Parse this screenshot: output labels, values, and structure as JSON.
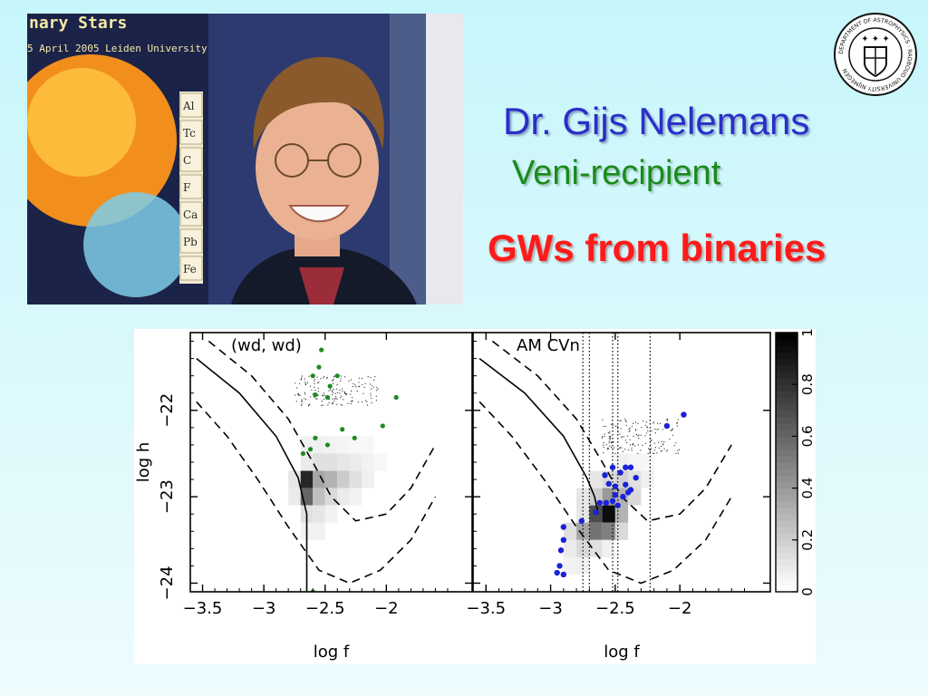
{
  "slide": {
    "name": "Dr. Gijs Nelemans",
    "role": "Veni-recipient",
    "topic": "GWs from binaries"
  },
  "photo": {
    "poster_line1": "nary Stars",
    "poster_line2": "5 April 2005 Leiden University",
    "elements": [
      "Al",
      "Tc",
      "C",
      "F",
      "Ca",
      "Pb",
      "Fe"
    ]
  },
  "seal": {
    "text": "DEPARTMENT OF ASTROPHYSICS · RADBOUD UNIVERSITY NIJMEGEN"
  },
  "colors": {
    "name": "#2a2fc8",
    "role": "#1a8a1a",
    "topic": "#ff1a1a"
  },
  "chart_data": [
    {
      "type": "scatter",
      "title": "(wd, wd)",
      "xlabel": "log f",
      "ylabel": "log h",
      "xlim": [
        -3.6,
        -1.3
      ],
      "ylim": [
        -24.1,
        -21.1
      ],
      "xticks": [
        "−3.5",
        "−3",
        "−2.5",
        "−2"
      ],
      "yticks": [
        "−22",
        "−23",
        "−24"
      ],
      "density_cells": [
        {
          "x": -2.65,
          "y": -22.4,
          "v": 0.06
        },
        {
          "x": -2.55,
          "y": -22.4,
          "v": 0.06
        },
        {
          "x": -2.45,
          "y": -22.4,
          "v": 0.05
        },
        {
          "x": -2.35,
          "y": -22.4,
          "v": 0.04
        },
        {
          "x": -2.25,
          "y": -22.4,
          "v": 0.03
        },
        {
          "x": -2.15,
          "y": -22.4,
          "v": 0.03
        },
        {
          "x": -2.65,
          "y": -22.6,
          "v": 0.08
        },
        {
          "x": -2.55,
          "y": -22.6,
          "v": 0.12
        },
        {
          "x": -2.45,
          "y": -22.6,
          "v": 0.12
        },
        {
          "x": -2.35,
          "y": -22.6,
          "v": 0.1
        },
        {
          "x": -2.25,
          "y": -22.6,
          "v": 0.08
        },
        {
          "x": -2.15,
          "y": -22.6,
          "v": 0.05
        },
        {
          "x": -2.05,
          "y": -22.6,
          "v": 0.03
        },
        {
          "x": -2.75,
          "y": -22.8,
          "v": 0.1
        },
        {
          "x": -2.65,
          "y": -22.8,
          "v": 0.85
        },
        {
          "x": -2.55,
          "y": -22.8,
          "v": 0.35
        },
        {
          "x": -2.45,
          "y": -22.8,
          "v": 0.3
        },
        {
          "x": -2.35,
          "y": -22.8,
          "v": 0.2
        },
        {
          "x": -2.25,
          "y": -22.8,
          "v": 0.12
        },
        {
          "x": -2.15,
          "y": -22.8,
          "v": 0.06
        },
        {
          "x": -2.75,
          "y": -23.0,
          "v": 0.08
        },
        {
          "x": -2.65,
          "y": -23.0,
          "v": 0.6
        },
        {
          "x": -2.55,
          "y": -23.0,
          "v": 0.25
        },
        {
          "x": -2.45,
          "y": -23.0,
          "v": 0.15
        },
        {
          "x": -2.35,
          "y": -23.0,
          "v": 0.08
        },
        {
          "x": -2.25,
          "y": -23.0,
          "v": 0.05
        },
        {
          "x": -2.65,
          "y": -23.2,
          "v": 0.12
        },
        {
          "x": -2.55,
          "y": -23.2,
          "v": 0.1
        },
        {
          "x": -2.45,
          "y": -23.2,
          "v": 0.05
        },
        {
          "x": -2.65,
          "y": -23.4,
          "v": 0.05
        },
        {
          "x": -2.55,
          "y": -23.4,
          "v": 0.05
        }
      ],
      "points": [
        {
          "x": -2.53,
          "y": -21.3
        },
        {
          "x": -2.55,
          "y": -21.5
        },
        {
          "x": -2.6,
          "y": -21.6
        },
        {
          "x": -2.4,
          "y": -21.6
        },
        {
          "x": -2.46,
          "y": -21.72
        },
        {
          "x": -2.58,
          "y": -21.82
        },
        {
          "x": -2.48,
          "y": -21.85
        },
        {
          "x": -1.92,
          "y": -21.85
        },
        {
          "x": -2.03,
          "y": -22.18
        },
        {
          "x": -2.36,
          "y": -22.22
        },
        {
          "x": -2.58,
          "y": -22.32
        },
        {
          "x": -2.26,
          "y": -22.32
        },
        {
          "x": -2.48,
          "y": -22.4
        },
        {
          "x": -2.62,
          "y": -22.45
        },
        {
          "x": -2.68,
          "y": -22.5
        },
        {
          "x": -2.6,
          "y": -24.1
        }
      ],
      "curves": {
        "solid": [
          [
            -3.55,
            -21.4
          ],
          [
            -3.2,
            -21.8
          ],
          [
            -2.9,
            -22.3
          ],
          [
            -2.72,
            -22.78
          ],
          [
            -2.65,
            -23.2
          ],
          [
            -2.65,
            -24.1
          ]
        ],
        "dashed_upper": [
          [
            -3.45,
            -21.2
          ],
          [
            -3.1,
            -21.6
          ],
          [
            -2.8,
            -22.1
          ],
          [
            -2.6,
            -22.6
          ],
          [
            -2.45,
            -23.0
          ],
          [
            -2.25,
            -23.28
          ],
          [
            -2.0,
            -23.2
          ],
          [
            -1.8,
            -22.9
          ],
          [
            -1.6,
            -22.4
          ]
        ],
        "dashed_lower": [
          [
            -3.55,
            -21.9
          ],
          [
            -3.3,
            -22.3
          ],
          [
            -3.05,
            -22.8
          ],
          [
            -2.8,
            -23.35
          ],
          [
            -2.55,
            -23.85
          ],
          [
            -2.3,
            -24.0
          ],
          [
            -2.05,
            -23.85
          ],
          [
            -1.8,
            -23.5
          ],
          [
            -1.6,
            -23.0
          ]
        ]
      }
    },
    {
      "type": "scatter",
      "title": "AM CVn",
      "xlabel": "log f",
      "ylabel": "",
      "xlim": [
        -3.6,
        -1.3
      ],
      "ylim": [
        -24.1,
        -21.1
      ],
      "xticks": [
        "−3.5",
        "−3",
        "−2.5",
        "−2"
      ],
      "vlines": [
        -2.75,
        -2.7,
        -2.52,
        -2.48,
        -2.23
      ],
      "density_cells": [
        {
          "x": -2.45,
          "y": -22.6,
          "v": 0.06
        },
        {
          "x": -2.35,
          "y": -22.6,
          "v": 0.04
        },
        {
          "x": -2.25,
          "y": -22.6,
          "v": 0.03
        },
        {
          "x": -2.65,
          "y": -22.8,
          "v": 0.1
        },
        {
          "x": -2.55,
          "y": -22.8,
          "v": 0.15
        },
        {
          "x": -2.45,
          "y": -22.8,
          "v": 0.18
        },
        {
          "x": -2.35,
          "y": -22.8,
          "v": 0.12
        },
        {
          "x": -2.25,
          "y": -22.8,
          "v": 0.06
        },
        {
          "x": -2.75,
          "y": -23.0,
          "v": 0.1
        },
        {
          "x": -2.65,
          "y": -23.0,
          "v": 0.2
        },
        {
          "x": -2.55,
          "y": -23.0,
          "v": 0.4
        },
        {
          "x": -2.45,
          "y": -23.0,
          "v": 0.3
        },
        {
          "x": -2.35,
          "y": -23.0,
          "v": 0.15
        },
        {
          "x": -2.75,
          "y": -23.2,
          "v": 0.1
        },
        {
          "x": -2.65,
          "y": -23.2,
          "v": 0.7
        },
        {
          "x": -2.55,
          "y": -23.2,
          "v": 0.95
        },
        {
          "x": -2.45,
          "y": -23.2,
          "v": 0.3
        },
        {
          "x": -2.85,
          "y": -23.4,
          "v": 0.12
        },
        {
          "x": -2.75,
          "y": -23.4,
          "v": 0.35
        },
        {
          "x": -2.65,
          "y": -23.4,
          "v": 0.55
        },
        {
          "x": -2.55,
          "y": -23.4,
          "v": 0.5
        },
        {
          "x": -2.45,
          "y": -23.4,
          "v": 0.15
        },
        {
          "x": -2.85,
          "y": -23.6,
          "v": 0.08
        },
        {
          "x": -2.75,
          "y": -23.6,
          "v": 0.15
        },
        {
          "x": -2.65,
          "y": -23.6,
          "v": 0.12
        },
        {
          "x": -2.55,
          "y": -23.6,
          "v": 0.06
        },
        {
          "x": -2.85,
          "y": -23.8,
          "v": 0.05
        },
        {
          "x": -2.75,
          "y": -23.8,
          "v": 0.06
        }
      ],
      "points": [
        {
          "x": -1.97,
          "y": -22.05
        },
        {
          "x": -2.1,
          "y": -22.18
        },
        {
          "x": -2.52,
          "y": -22.66
        },
        {
          "x": -2.42,
          "y": -22.66
        },
        {
          "x": -2.38,
          "y": -22.66
        },
        {
          "x": -2.58,
          "y": -22.75
        },
        {
          "x": -2.46,
          "y": -22.72
        },
        {
          "x": -2.34,
          "y": -22.78
        },
        {
          "x": -2.55,
          "y": -22.85
        },
        {
          "x": -2.5,
          "y": -22.88
        },
        {
          "x": -2.42,
          "y": -22.86
        },
        {
          "x": -2.38,
          "y": -22.92
        },
        {
          "x": -2.5,
          "y": -22.98
        },
        {
          "x": -2.44,
          "y": -23.0
        },
        {
          "x": -2.4,
          "y": -22.95
        },
        {
          "x": -2.62,
          "y": -23.07
        },
        {
          "x": -2.57,
          "y": -23.07
        },
        {
          "x": -2.52,
          "y": -23.05
        },
        {
          "x": -2.48,
          "y": -23.1
        },
        {
          "x": -2.65,
          "y": -23.18
        },
        {
          "x": -2.76,
          "y": -23.28
        },
        {
          "x": -2.9,
          "y": -23.35
        },
        {
          "x": -2.9,
          "y": -23.5
        },
        {
          "x": -2.92,
          "y": -23.62
        },
        {
          "x": -2.93,
          "y": -23.8
        },
        {
          "x": -2.95,
          "y": -23.88
        },
        {
          "x": -2.9,
          "y": -23.9
        }
      ],
      "curves": {
        "solid": [
          [
            -3.55,
            -21.4
          ],
          [
            -3.2,
            -21.8
          ],
          [
            -2.9,
            -22.3
          ],
          [
            -2.72,
            -22.78
          ],
          [
            -2.66,
            -23.0
          ],
          [
            -2.63,
            -23.2
          ]
        ],
        "dashed_upper": [
          [
            -3.45,
            -21.2
          ],
          [
            -3.1,
            -21.6
          ],
          [
            -2.8,
            -22.1
          ],
          [
            -2.6,
            -22.6
          ],
          [
            -2.45,
            -23.0
          ],
          [
            -2.25,
            -23.28
          ],
          [
            -2.0,
            -23.2
          ],
          [
            -1.8,
            -22.9
          ],
          [
            -1.6,
            -22.4
          ]
        ],
        "dashed_lower": [
          [
            -3.55,
            -21.9
          ],
          [
            -3.3,
            -22.3
          ],
          [
            -3.05,
            -22.8
          ],
          [
            -2.8,
            -23.35
          ],
          [
            -2.55,
            -23.85
          ],
          [
            -2.3,
            -24.0
          ],
          [
            -2.05,
            -23.85
          ],
          [
            -1.8,
            -23.5
          ],
          [
            -1.6,
            -23.0
          ]
        ]
      }
    }
  ],
  "colorbar": {
    "ticks": [
      "0",
      "0.2",
      "0.4",
      "0.6",
      "0.8",
      "1"
    ],
    "range": [
      0,
      1
    ]
  }
}
